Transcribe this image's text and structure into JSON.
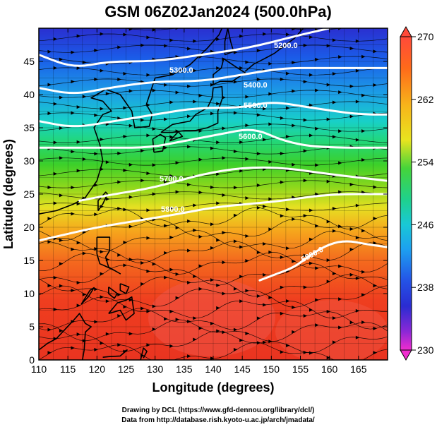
{
  "title": "GSM 06Z02Jan2024 (500.0hPa)",
  "xlabel": "Longitude (degrees)",
  "ylabel": "Latitude  (degrees)",
  "x_ticks": [
    "110",
    "115",
    "120",
    "125",
    "130",
    "135",
    "140",
    "145",
    "150",
    "155",
    "160",
    "165"
  ],
  "y_ticks": [
    "0",
    "5",
    "10",
    "15",
    "20",
    "25",
    "30",
    "35",
    "40",
    "45"
  ],
  "colorbar_ticks": [
    "270",
    "262",
    "254",
    "246",
    "238",
    "230"
  ],
  "contour_labels": [
    "5200.0",
    "5300.0",
    "5400.0",
    "5500.0",
    "5600.0",
    "5700.0",
    "5800.0",
    "5800.0"
  ],
  "credits": {
    "line1": "Drawing by DCL (https://www.gfd-dennou.org/library/dcl/)",
    "line2": "Data from http://database.rish.kyoto-u.ac.jp/arch/jmadata/"
  },
  "chart_data": {
    "type": "heatmap",
    "title": "GSM 06Z02Jan2024 (500.0hPa)",
    "xlabel": "Longitude (degrees)",
    "ylabel": "Latitude  (degrees)",
    "xlim": [
      110,
      170
    ],
    "ylim": [
      0,
      50
    ],
    "x_ticks": [
      110,
      115,
      120,
      125,
      130,
      135,
      140,
      145,
      150,
      155,
      160,
      165
    ],
    "y_ticks": [
      0,
      5,
      10,
      15,
      20,
      25,
      30,
      35,
      40,
      45
    ],
    "colorbar": {
      "min": 230,
      "max": 270,
      "ticks": [
        270,
        262,
        254,
        246,
        238,
        230
      ]
    },
    "contour_lines": [
      {
        "value": 5200,
        "points": [
          [
            110,
            46
          ],
          [
            116,
            44
          ],
          [
            122,
            45
          ],
          [
            130,
            45
          ],
          [
            138,
            46
          ],
          [
            146,
            47
          ],
          [
            155,
            49
          ],
          [
            160,
            50
          ]
        ]
      },
      {
        "value": 5300,
        "points": [
          [
            110,
            41
          ],
          [
            116,
            40
          ],
          [
            122,
            41
          ],
          [
            130,
            42
          ],
          [
            138,
            42
          ],
          [
            145,
            43
          ],
          [
            152,
            44
          ],
          [
            158,
            44
          ],
          [
            164,
            44
          ],
          [
            170,
            44
          ]
        ]
      },
      {
        "value": 5400,
        "points": [
          [
            110,
            36
          ],
          [
            116,
            35
          ],
          [
            123,
            36
          ],
          [
            130,
            37
          ],
          [
            137,
            38
          ],
          [
            145,
            38
          ],
          [
            150,
            39
          ],
          [
            157,
            38
          ],
          [
            165,
            37
          ],
          [
            170,
            37
          ]
        ]
      },
      {
        "value": 5500,
        "points": [
          [
            110,
            32
          ],
          [
            117,
            32
          ],
          [
            123,
            32
          ],
          [
            129,
            32
          ],
          [
            135,
            33
          ],
          [
            141,
            34
          ],
          [
            147,
            35
          ],
          [
            152,
            33
          ],
          [
            158,
            32
          ],
          [
            170,
            32
          ]
        ]
      },
      {
        "value": 5600,
        "points": [
          [
            117,
            24
          ],
          [
            123,
            25
          ],
          [
            130,
            26
          ],
          [
            138,
            28
          ],
          [
            145,
            29
          ],
          [
            152,
            29
          ],
          [
            160,
            28
          ],
          [
            170,
            27
          ]
        ]
      },
      {
        "value": 5700,
        "points": [
          [
            110,
            18
          ],
          [
            115,
            19
          ],
          [
            120,
            20
          ],
          [
            127,
            21
          ],
          [
            134,
            22
          ],
          [
            140,
            23
          ],
          [
            146,
            23.5
          ],
          [
            152,
            24
          ],
          [
            160,
            25
          ],
          [
            170,
            25
          ]
        ]
      },
      {
        "value": 5800,
        "points": [
          [
            148,
            12
          ],
          [
            151,
            13
          ],
          [
            154,
            14
          ],
          [
            157,
            16
          ],
          [
            160,
            17.5
          ],
          [
            163,
            18
          ],
          [
            166,
            17.5
          ],
          [
            170,
            17
          ]
        ]
      }
    ],
    "contour_label_values": [
      5200,
      5300,
      5400,
      5500,
      5600,
      5700,
      5800,
      5800
    ],
    "wind": "streamlines flowing west to east"
  }
}
